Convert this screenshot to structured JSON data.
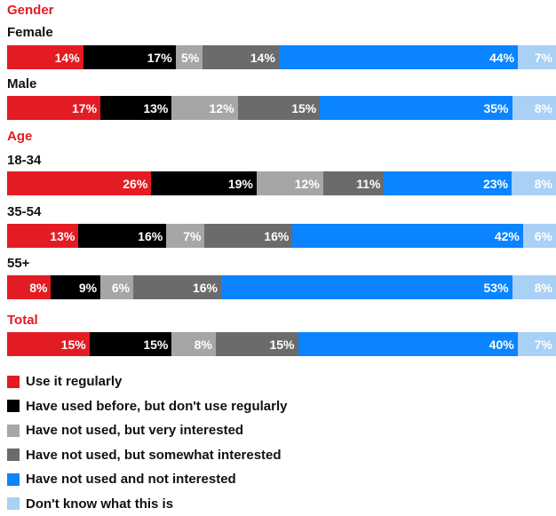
{
  "chart_data": {
    "type": "bar",
    "orientation": "horizontal",
    "stacked": true,
    "unit": "%",
    "series": [
      {
        "name": "Use it regularly",
        "color": "#e31b23"
      },
      {
        "name": "Have used before, but don't use regularly",
        "color": "#000000"
      },
      {
        "name": "Have not used, but very interested",
        "color": "#a6a6a6"
      },
      {
        "name": "Have not used, but somewhat interested",
        "color": "#6b6b6b"
      },
      {
        "name": "Have not used and not interested",
        "color": "#0a84ff"
      },
      {
        "name": "Don't know what this is",
        "color": "#a9d0f5"
      }
    ],
    "groups": [
      {
        "label": "Gender",
        "rows": [
          {
            "label": "Female",
            "values": [
              14,
              17,
              5,
              14,
              44,
              7
            ]
          },
          {
            "label": "Male",
            "values": [
              17,
              13,
              12,
              15,
              35,
              8
            ]
          }
        ]
      },
      {
        "label": "Age",
        "rows": [
          {
            "label": "18-34",
            "values": [
              26,
              19,
              12,
              11,
              23,
              8
            ]
          },
          {
            "label": "35-54",
            "values": [
              13,
              16,
              7,
              16,
              42,
              6
            ]
          },
          {
            "label": "55+",
            "values": [
              8,
              9,
              6,
              16,
              53,
              8
            ]
          }
        ]
      },
      {
        "label": "",
        "rows": [
          {
            "label": "Total",
            "values": [
              15,
              15,
              8,
              15,
              40,
              7
            ]
          }
        ]
      }
    ]
  }
}
